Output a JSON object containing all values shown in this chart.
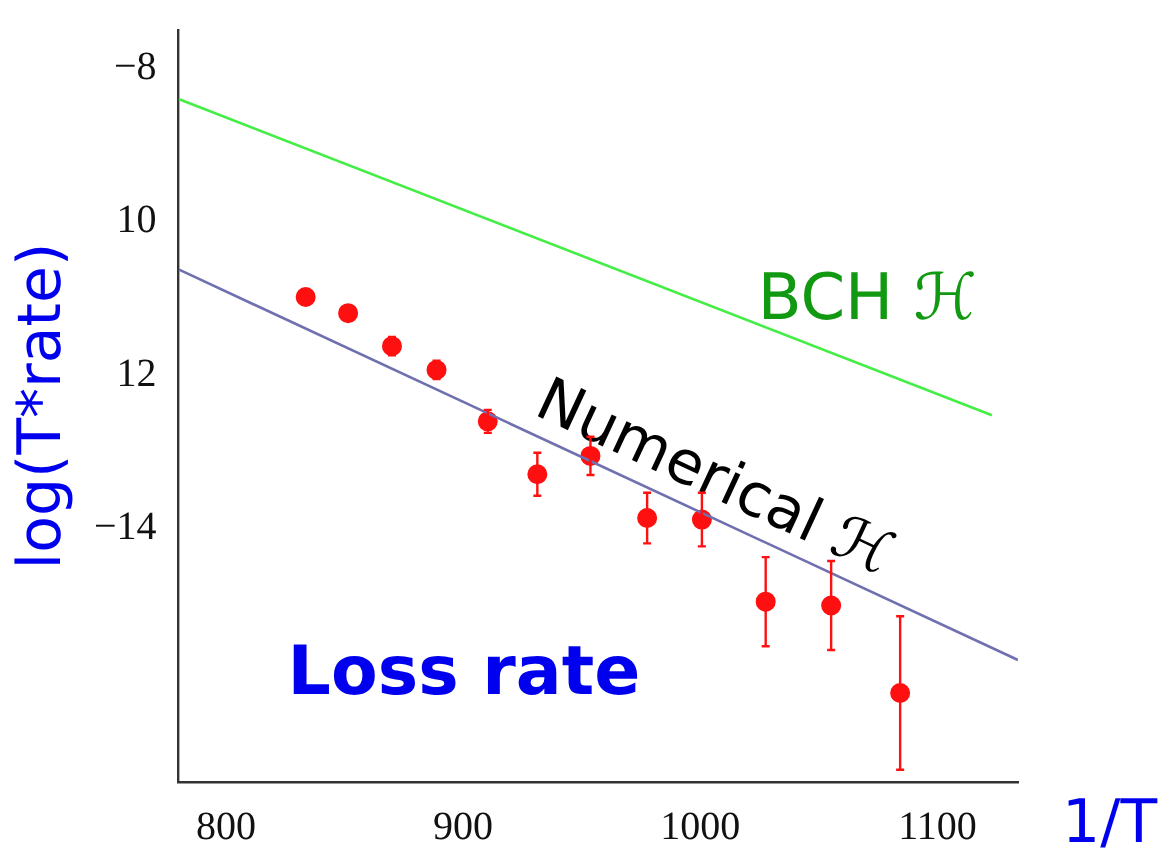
{
  "chart_data": {
    "type": "scatter",
    "xlabel": "1/T",
    "ylabel": "log(T*rate)",
    "xlim": [
      780,
      1134
    ],
    "ylim": [
      -17.3,
      -7.5
    ],
    "xticks": [
      800,
      900,
      1000,
      1100
    ],
    "yticks": [
      {
        "value": -8,
        "label": "−8"
      },
      {
        "value": -10,
        "label": "10"
      },
      {
        "value": -12,
        "label": "12"
      },
      {
        "value": -14,
        "label": "−14"
      }
    ],
    "grid": false,
    "legend": false,
    "marker": "circle",
    "series": [
      {
        "name": "BCH ℋ",
        "type": "line",
        "marker": "none",
        "color": "#44ee44",
        "x": [
          780,
          1123
        ],
        "values": [
          -8.4,
          -12.52
        ]
      },
      {
        "name": "Numerical ℋ",
        "type": "line",
        "marker": "none",
        "color": "#7070b0",
        "x": [
          780,
          1134
        ],
        "values": [
          -10.62,
          -15.71
        ]
      },
      {
        "name": "Loss rate",
        "color": "#ff1010",
        "x": [
          833.6,
          851.5,
          870,
          888.8,
          910.4,
          931.3,
          953.7,
          977.6,
          1000.7,
          1027.6,
          1055.2,
          1084.3
        ],
        "values": [
          -10.98,
          -11.19,
          -11.62,
          -11.93,
          -12.6,
          -13.29,
          -13.05,
          -13.86,
          -13.88,
          -14.95,
          -15.0,
          -16.14
        ],
        "errors": [
          0.1,
          0.1,
          0.12,
          0.12,
          0.15,
          0.28,
          0.25,
          0.33,
          0.35,
          0.58,
          0.58,
          1.0
        ]
      }
    ]
  }
}
